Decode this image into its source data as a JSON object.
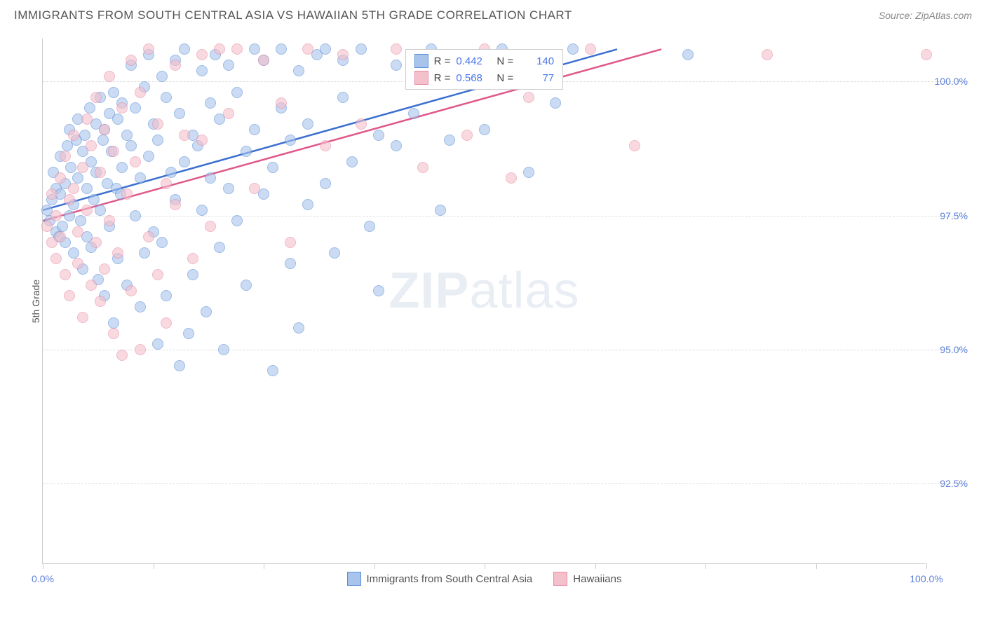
{
  "header": {
    "title": "IMMIGRANTS FROM SOUTH CENTRAL ASIA VS HAWAIIAN 5TH GRADE CORRELATION CHART",
    "source_label": "Source: ",
    "source_name": "ZipAtlas.com"
  },
  "chart": {
    "type": "scatter",
    "ylabel": "5th Grade",
    "xlim": [
      0,
      100
    ],
    "ylim": [
      91.0,
      100.8
    ],
    "xtick_positions": [
      0,
      12.5,
      25,
      37.5,
      50,
      62.5,
      75,
      87.5,
      100
    ],
    "xtick_labels": {
      "0": "0.0%",
      "100": "100.0%"
    },
    "ytick_positions": [
      92.5,
      95.0,
      97.5,
      100.0
    ],
    "ytick_labels": [
      "92.5%",
      "95.0%",
      "97.5%",
      "100.0%"
    ],
    "background_color": "#ffffff",
    "grid_color": "#dddddd",
    "axis_color": "#cccccc",
    "label_color": "#555555",
    "tick_label_color": "#5b7fd6",
    "marker_radius": 8,
    "marker_opacity": 0.6,
    "series": [
      {
        "name": "Immigrants from South Central Asia",
        "fill": "#a8c4ec",
        "stroke": "#5b8fd6",
        "line_color": "#3b6fd0",
        "regression": {
          "x1": 0,
          "y1": 97.6,
          "x2": 65,
          "y2": 100.6
        },
        "stats": {
          "R_label": "R =",
          "R": "0.442",
          "N_label": "N =",
          "N": "140"
        },
        "points": [
          [
            0.5,
            97.6
          ],
          [
            0.8,
            97.4
          ],
          [
            1.0,
            97.8
          ],
          [
            1.2,
            98.3
          ],
          [
            1.5,
            97.2
          ],
          [
            1.5,
            98.0
          ],
          [
            1.8,
            97.1
          ],
          [
            2.0,
            97.9
          ],
          [
            2.0,
            98.6
          ],
          [
            2.2,
            97.3
          ],
          [
            2.5,
            98.1
          ],
          [
            2.5,
            97.0
          ],
          [
            2.8,
            98.8
          ],
          [
            3.0,
            97.5
          ],
          [
            3.0,
            99.1
          ],
          [
            3.2,
            98.4
          ],
          [
            3.5,
            97.7
          ],
          [
            3.5,
            96.8
          ],
          [
            3.8,
            98.9
          ],
          [
            4.0,
            98.2
          ],
          [
            4.0,
            99.3
          ],
          [
            4.3,
            97.4
          ],
          [
            4.5,
            98.7
          ],
          [
            4.5,
            96.5
          ],
          [
            4.8,
            99.0
          ],
          [
            5.0,
            98.0
          ],
          [
            5.0,
            97.1
          ],
          [
            5.3,
            99.5
          ],
          [
            5.5,
            98.5
          ],
          [
            5.5,
            96.9
          ],
          [
            5.8,
            97.8
          ],
          [
            6.0,
            99.2
          ],
          [
            6.0,
            98.3
          ],
          [
            6.3,
            96.3
          ],
          [
            6.5,
            99.7
          ],
          [
            6.5,
            97.6
          ],
          [
            6.8,
            98.9
          ],
          [
            7.0,
            99.1
          ],
          [
            7.0,
            96.0
          ],
          [
            7.3,
            98.1
          ],
          [
            7.5,
            99.4
          ],
          [
            7.5,
            97.3
          ],
          [
            7.8,
            98.7
          ],
          [
            8.0,
            95.5
          ],
          [
            8.0,
            99.8
          ],
          [
            8.3,
            98.0
          ],
          [
            8.5,
            96.7
          ],
          [
            8.5,
            99.3
          ],
          [
            8.8,
            97.9
          ],
          [
            9.0,
            99.6
          ],
          [
            9.0,
            98.4
          ],
          [
            9.5,
            96.2
          ],
          [
            9.5,
            99.0
          ],
          [
            10.0,
            98.8
          ],
          [
            10.0,
            100.3
          ],
          [
            10.5,
            97.5
          ],
          [
            10.5,
            99.5
          ],
          [
            11.0,
            95.8
          ],
          [
            11.0,
            98.2
          ],
          [
            11.5,
            99.9
          ],
          [
            11.5,
            96.8
          ],
          [
            12.0,
            98.6
          ],
          [
            12.0,
            100.5
          ],
          [
            12.5,
            97.2
          ],
          [
            12.5,
            99.2
          ],
          [
            13.0,
            95.1
          ],
          [
            13.0,
            98.9
          ],
          [
            13.5,
            100.1
          ],
          [
            13.5,
            97.0
          ],
          [
            14.0,
            99.7
          ],
          [
            14.0,
            96.0
          ],
          [
            14.5,
            98.3
          ],
          [
            15.0,
            100.4
          ],
          [
            15.0,
            97.8
          ],
          [
            15.5,
            94.7
          ],
          [
            15.5,
            99.4
          ],
          [
            16.0,
            98.5
          ],
          [
            16.0,
            100.6
          ],
          [
            16.5,
            95.3
          ],
          [
            17.0,
            99.0
          ],
          [
            17.0,
            96.4
          ],
          [
            17.5,
            98.8
          ],
          [
            18.0,
            100.2
          ],
          [
            18.0,
            97.6
          ],
          [
            18.5,
            95.7
          ],
          [
            19.0,
            99.6
          ],
          [
            19.0,
            98.2
          ],
          [
            19.5,
            100.5
          ],
          [
            20.0,
            96.9
          ],
          [
            20.0,
            99.3
          ],
          [
            20.5,
            95.0
          ],
          [
            21.0,
            98.0
          ],
          [
            21.0,
            100.3
          ],
          [
            22.0,
            97.4
          ],
          [
            22.0,
            99.8
          ],
          [
            23.0,
            98.7
          ],
          [
            23.0,
            96.2
          ],
          [
            24.0,
            100.6
          ],
          [
            24.0,
            99.1
          ],
          [
            25.0,
            97.9
          ],
          [
            25.0,
            100.4
          ],
          [
            26.0,
            98.4
          ],
          [
            26.0,
            94.6
          ],
          [
            27.0,
            99.5
          ],
          [
            27.0,
            100.6
          ],
          [
            28.0,
            96.6
          ],
          [
            28.0,
            98.9
          ],
          [
            29.0,
            100.2
          ],
          [
            29.0,
            95.4
          ],
          [
            30.0,
            99.2
          ],
          [
            30.0,
            97.7
          ],
          [
            31.0,
            100.5
          ],
          [
            32.0,
            98.1
          ],
          [
            32.0,
            100.6
          ],
          [
            33.0,
            96.8
          ],
          [
            34.0,
            99.7
          ],
          [
            34.0,
            100.4
          ],
          [
            35.0,
            98.5
          ],
          [
            36.0,
            100.6
          ],
          [
            37.0,
            97.3
          ],
          [
            38.0,
            99.0
          ],
          [
            38.0,
            96.1
          ],
          [
            40.0,
            100.3
          ],
          [
            40.0,
            98.8
          ],
          [
            42.0,
            99.4
          ],
          [
            44.0,
            100.6
          ],
          [
            45.0,
            97.6
          ],
          [
            46.0,
            98.9
          ],
          [
            48.0,
            100.5
          ],
          [
            50.0,
            99.1
          ],
          [
            52.0,
            100.6
          ],
          [
            55.0,
            98.3
          ],
          [
            56.0,
            100.4
          ],
          [
            58.0,
            99.6
          ],
          [
            60.0,
            100.6
          ],
          [
            73.0,
            100.5
          ]
        ]
      },
      {
        "name": "Hawaiians",
        "fill": "#f4c0cc",
        "stroke": "#e88ca5",
        "line_color": "#e0588a",
        "regression": {
          "x1": 0,
          "y1": 97.4,
          "x2": 70,
          "y2": 100.6
        },
        "stats": {
          "R_label": "R =",
          "R": "0.568",
          "N_label": "N =",
          "N": "77"
        },
        "points": [
          [
            0.5,
            97.3
          ],
          [
            1.0,
            97.0
          ],
          [
            1.0,
            97.9
          ],
          [
            1.5,
            97.5
          ],
          [
            1.5,
            96.7
          ],
          [
            2.0,
            98.2
          ],
          [
            2.0,
            97.1
          ],
          [
            2.5,
            96.4
          ],
          [
            2.5,
            98.6
          ],
          [
            3.0,
            97.8
          ],
          [
            3.0,
            96.0
          ],
          [
            3.5,
            98.0
          ],
          [
            3.5,
            99.0
          ],
          [
            4.0,
            97.2
          ],
          [
            4.0,
            96.6
          ],
          [
            4.5,
            98.4
          ],
          [
            4.5,
            95.6
          ],
          [
            5.0,
            99.3
          ],
          [
            5.0,
            97.6
          ],
          [
            5.5,
            96.2
          ],
          [
            5.5,
            98.8
          ],
          [
            6.0,
            97.0
          ],
          [
            6.0,
            99.7
          ],
          [
            6.5,
            95.9
          ],
          [
            6.5,
            98.3
          ],
          [
            7.0,
            96.5
          ],
          [
            7.0,
            99.1
          ],
          [
            7.5,
            100.1
          ],
          [
            7.5,
            97.4
          ],
          [
            8.0,
            95.3
          ],
          [
            8.0,
            98.7
          ],
          [
            8.5,
            96.8
          ],
          [
            9.0,
            99.5
          ],
          [
            9.0,
            94.9
          ],
          [
            9.5,
            97.9
          ],
          [
            10.0,
            100.4
          ],
          [
            10.0,
            96.1
          ],
          [
            10.5,
            98.5
          ],
          [
            11.0,
            95.0
          ],
          [
            11.0,
            99.8
          ],
          [
            12.0,
            97.1
          ],
          [
            12.0,
            100.6
          ],
          [
            13.0,
            96.4
          ],
          [
            13.0,
            99.2
          ],
          [
            14.0,
            98.1
          ],
          [
            14.0,
            95.5
          ],
          [
            15.0,
            100.3
          ],
          [
            15.0,
            97.7
          ],
          [
            16.0,
            99.0
          ],
          [
            17.0,
            96.7
          ],
          [
            18.0,
            100.5
          ],
          [
            18.0,
            98.9
          ],
          [
            19.0,
            97.3
          ],
          [
            20.0,
            100.6
          ],
          [
            21.0,
            99.4
          ],
          [
            22.0,
            100.6
          ],
          [
            24.0,
            98.0
          ],
          [
            25.0,
            100.4
          ],
          [
            27.0,
            99.6
          ],
          [
            28.0,
            97.0
          ],
          [
            30.0,
            100.6
          ],
          [
            32.0,
            98.8
          ],
          [
            34.0,
            100.5
          ],
          [
            36.0,
            99.2
          ],
          [
            40.0,
            100.6
          ],
          [
            43.0,
            98.4
          ],
          [
            45.0,
            100.3
          ],
          [
            48.0,
            99.0
          ],
          [
            50.0,
            100.6
          ],
          [
            53.0,
            98.2
          ],
          [
            55.0,
            99.7
          ],
          [
            58.0,
            100.5
          ],
          [
            62.0,
            100.6
          ],
          [
            67.0,
            98.8
          ],
          [
            82.0,
            100.5
          ],
          [
            100.0,
            100.5
          ]
        ]
      }
    ],
    "legend_box": {
      "left_pct": 41,
      "top_pct": 2
    },
    "bottom_legend": [
      {
        "swatch_fill": "#a8c4ec",
        "swatch_stroke": "#5b8fd6",
        "label": "Immigrants from South Central Asia"
      },
      {
        "swatch_fill": "#f4c0cc",
        "swatch_stroke": "#e88ca5",
        "label": "Hawaiians"
      }
    ],
    "watermark": {
      "part1": "ZIP",
      "part2": "atlas"
    }
  }
}
